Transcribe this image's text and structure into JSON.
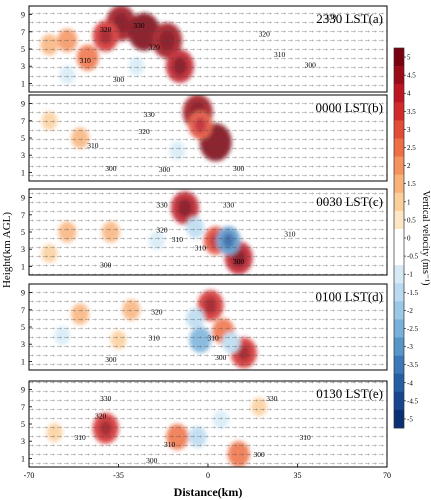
{
  "chart_data": {
    "type": "heatmap",
    "xlabel": "Distance(km)",
    "ylabel": "Height(km AGL)",
    "xlim": [
      -70,
      70
    ],
    "ylim": [
      0,
      10
    ],
    "x_ticks": [
      -70,
      -35,
      0,
      35,
      70
    ],
    "y_ticks": [
      1,
      3,
      5,
      7,
      9
    ],
    "colorbar": {
      "label": "Vertical velocity (ms⁻¹)",
      "ticks": [
        5,
        4.5,
        4,
        3.5,
        3,
        2.5,
        2,
        1.5,
        1,
        0.5,
        0,
        -0.5,
        -1,
        -1.5,
        -2,
        -2.5,
        -3,
        -3.5,
        -4,
        -4.5,
        -5
      ],
      "colors": [
        "#7a0010",
        "#9c0a18",
        "#bd1522",
        "#d42a2a",
        "#e34c35",
        "#ee6f45",
        "#f4935e",
        "#f8b37b",
        "#fbcf9c",
        "#fde6c4",
        "#ffffff",
        "#ffffff",
        "#d6eaf6",
        "#b9daf0",
        "#9ac8e6",
        "#77b1da",
        "#5796c9",
        "#3b79b7",
        "#265ea3",
        "#17458e",
        "#0b2f73"
      ]
    },
    "panels": [
      {
        "label": "2330 LST(a)",
        "isentropes": [
          {
            "theta": 330,
            "x": -27,
            "y": 7.8
          },
          {
            "theta": 320,
            "x": -40,
            "y": 7.3
          },
          {
            "theta": 320,
            "x": -21,
            "y": 5.3
          },
          {
            "theta": 310,
            "x": -48,
            "y": 3.7
          },
          {
            "theta": 300,
            "x": -35,
            "y": 1.5
          },
          {
            "theta": 310,
            "x": 28,
            "y": 4.4
          },
          {
            "theta": 300,
            "x": 40,
            "y": 3.2
          },
          {
            "theta": 320,
            "x": 22,
            "y": 6.8
          },
          {
            "theta": 330,
            "x": 48,
            "y": 8.8
          }
        ],
        "updrafts": [
          {
            "x": -34,
            "y": 8,
            "w": 4.5
          },
          {
            "x": -40,
            "y": 6.5,
            "w": 3.5
          },
          {
            "x": -25,
            "y": 7,
            "w": 5
          },
          {
            "x": -16,
            "y": 6,
            "w": 4.5
          },
          {
            "x": -11,
            "y": 3,
            "w": 4
          },
          {
            "x": -55,
            "y": 6,
            "w": 2
          },
          {
            "x": -62,
            "y": 5.5,
            "w": 1.5
          },
          {
            "x": -47,
            "y": 4,
            "w": 2.5
          }
        ],
        "downdrafts": [
          {
            "x": -55,
            "y": 2,
            "w": -1
          },
          {
            "x": -28,
            "y": 3,
            "w": -1
          }
        ]
      },
      {
        "label": "0000 LST(b)",
        "isentropes": [
          {
            "theta": 330,
            "x": -23,
            "y": 7.8
          },
          {
            "theta": 320,
            "x": -25,
            "y": 5.8
          },
          {
            "theta": 310,
            "x": -45,
            "y": 4.2
          },
          {
            "theta": 300,
            "x": -38,
            "y": 1.5
          },
          {
            "theta": 300,
            "x": -17,
            "y": 1.4
          },
          {
            "theta": 300,
            "x": 12,
            "y": 1.5
          }
        ],
        "updrafts": [
          {
            "x": -4,
            "y": 8,
            "w": 4.5
          },
          {
            "x": 3,
            "y": 4.5,
            "w": 5
          },
          {
            "x": -3,
            "y": 6.5,
            "w": 3
          },
          {
            "x": -50,
            "y": 5,
            "w": 1.5
          },
          {
            "x": -62,
            "y": 7,
            "w": 1
          }
        ],
        "downdrafts": [
          {
            "x": -12,
            "y": 3.5,
            "w": -1
          },
          {
            "x": -27,
            "y": 3,
            "w": -0.5
          }
        ]
      },
      {
        "label": "0030 LST(c)",
        "isentropes": [
          {
            "theta": 330,
            "x": -18,
            "y": 8.2
          },
          {
            "theta": 320,
            "x": -18,
            "y": 5.3
          },
          {
            "theta": 310,
            "x": -12,
            "y": 4.2
          },
          {
            "theta": 310,
            "x": -3,
            "y": 3.2
          },
          {
            "theta": 300,
            "x": -40,
            "y": 1.2
          },
          {
            "theta": 300,
            "x": 12,
            "y": 1.6
          },
          {
            "theta": 310,
            "x": 32,
            "y": 4.8
          },
          {
            "theta": 330,
            "x": 8,
            "y": 8.2
          }
        ],
        "updrafts": [
          {
            "x": -9,
            "y": 7.8,
            "w": 4
          },
          {
            "x": 12,
            "y": 2,
            "w": 4
          },
          {
            "x": 3,
            "y": 4,
            "w": 3
          },
          {
            "x": -38,
            "y": 5,
            "w": 1.5
          },
          {
            "x": -55,
            "y": 5,
            "w": 1.5
          },
          {
            "x": -62,
            "y": 2.5,
            "w": 1
          }
        ],
        "downdrafts": [
          {
            "x": 8,
            "y": 4,
            "w": -3
          },
          {
            "x": -5,
            "y": 5.5,
            "w": -1.5
          },
          {
            "x": -20,
            "y": 4,
            "w": -1
          }
        ]
      },
      {
        "label": "0100 LST(d)",
        "isentropes": [
          {
            "theta": 320,
            "x": -20,
            "y": 6.8
          },
          {
            "theta": 310,
            "x": -21,
            "y": 3.8
          },
          {
            "theta": 310,
            "x": 2,
            "y": 3.8
          },
          {
            "theta": 300,
            "x": -38,
            "y": 1.3
          },
          {
            "theta": 300,
            "x": 5,
            "y": 1.5
          }
        ],
        "updrafts": [
          {
            "x": 1,
            "y": 7.5,
            "w": 3.5
          },
          {
            "x": 6,
            "y": 4.5,
            "w": 2.5
          },
          {
            "x": 14,
            "y": 2,
            "w": 3.5
          },
          {
            "x": -30,
            "y": 7,
            "w": 1.5
          },
          {
            "x": -50,
            "y": 6.5,
            "w": 1.5
          },
          {
            "x": -35,
            "y": 3.5,
            "w": 1
          }
        ],
        "downdrafts": [
          {
            "x": -3,
            "y": 3.5,
            "w": -2.5
          },
          {
            "x": -5,
            "y": 6,
            "w": -1.5
          },
          {
            "x": 9,
            "y": 3.2,
            "w": -1.5
          },
          {
            "x": -57,
            "y": 4,
            "w": -1
          }
        ]
      },
      {
        "label": "0130 LST(e)",
        "isentropes": [
          {
            "theta": 330,
            "x": -40,
            "y": 8.0
          },
          {
            "theta": 330,
            "x": 25,
            "y": 8.0
          },
          {
            "theta": 320,
            "x": -42,
            "y": 6.0
          },
          {
            "theta": 310,
            "x": -50,
            "y": 3.5
          },
          {
            "theta": 310,
            "x": -15,
            "y": 2.7
          },
          {
            "theta": 310,
            "x": 38,
            "y": 3.5
          },
          {
            "theta": 300,
            "x": -22,
            "y": 0.8
          },
          {
            "theta": 300,
            "x": 20,
            "y": 1.5
          }
        ],
        "updrafts": [
          {
            "x": -40,
            "y": 4.5,
            "w": 3.5
          },
          {
            "x": -12,
            "y": 3.5,
            "w": 2.5
          },
          {
            "x": 12,
            "y": 1.5,
            "w": 2.5
          },
          {
            "x": -60,
            "y": 4,
            "w": 1
          },
          {
            "x": 20,
            "y": 7,
            "w": 1
          }
        ],
        "downdrafts": [
          {
            "x": -4,
            "y": 3.5,
            "w": -1.5
          },
          {
            "x": 5,
            "y": 5.5,
            "w": -1
          },
          {
            "x": -25,
            "y": 5,
            "w": -0.5
          }
        ]
      }
    ]
  }
}
